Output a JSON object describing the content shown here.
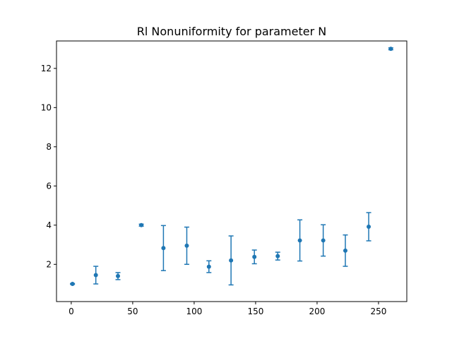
{
  "chart_data": {
    "type": "scatter",
    "title": "Rl Nonuniformity for parameter N",
    "xlabel": "",
    "ylabel": "",
    "xlim": [
      -12,
      273
    ],
    "ylim": [
      0.1,
      13.4
    ],
    "xticks": [
      0,
      50,
      100,
      150,
      200,
      250
    ],
    "yticks": [
      2,
      4,
      6,
      8,
      10,
      12
    ],
    "grid": false,
    "series": [
      {
        "color": "#1f77b4",
        "points": [
          {
            "x": 1,
            "y": 1.0,
            "err": 0.02
          },
          {
            "x": 20,
            "y": 1.45,
            "err": 0.45
          },
          {
            "x": 38,
            "y": 1.4,
            "err": 0.18
          },
          {
            "x": 57,
            "y": 4.0,
            "err": 0.05
          },
          {
            "x": 75,
            "y": 2.83,
            "err": 1.15
          },
          {
            "x": 94,
            "y": 2.95,
            "err": 0.95
          },
          {
            "x": 112,
            "y": 1.88,
            "err": 0.3
          },
          {
            "x": 130,
            "y": 2.2,
            "err": 1.25
          },
          {
            "x": 149,
            "y": 2.38,
            "err": 0.35
          },
          {
            "x": 168,
            "y": 2.42,
            "err": 0.2
          },
          {
            "x": 186,
            "y": 3.22,
            "err": 1.05
          },
          {
            "x": 205,
            "y": 3.22,
            "err": 0.8
          },
          {
            "x": 223,
            "y": 2.7,
            "err": 0.8
          },
          {
            "x": 242,
            "y": 3.92,
            "err": 0.72
          },
          {
            "x": 260,
            "y": 13.0,
            "err": 0.05
          }
        ]
      }
    ]
  }
}
